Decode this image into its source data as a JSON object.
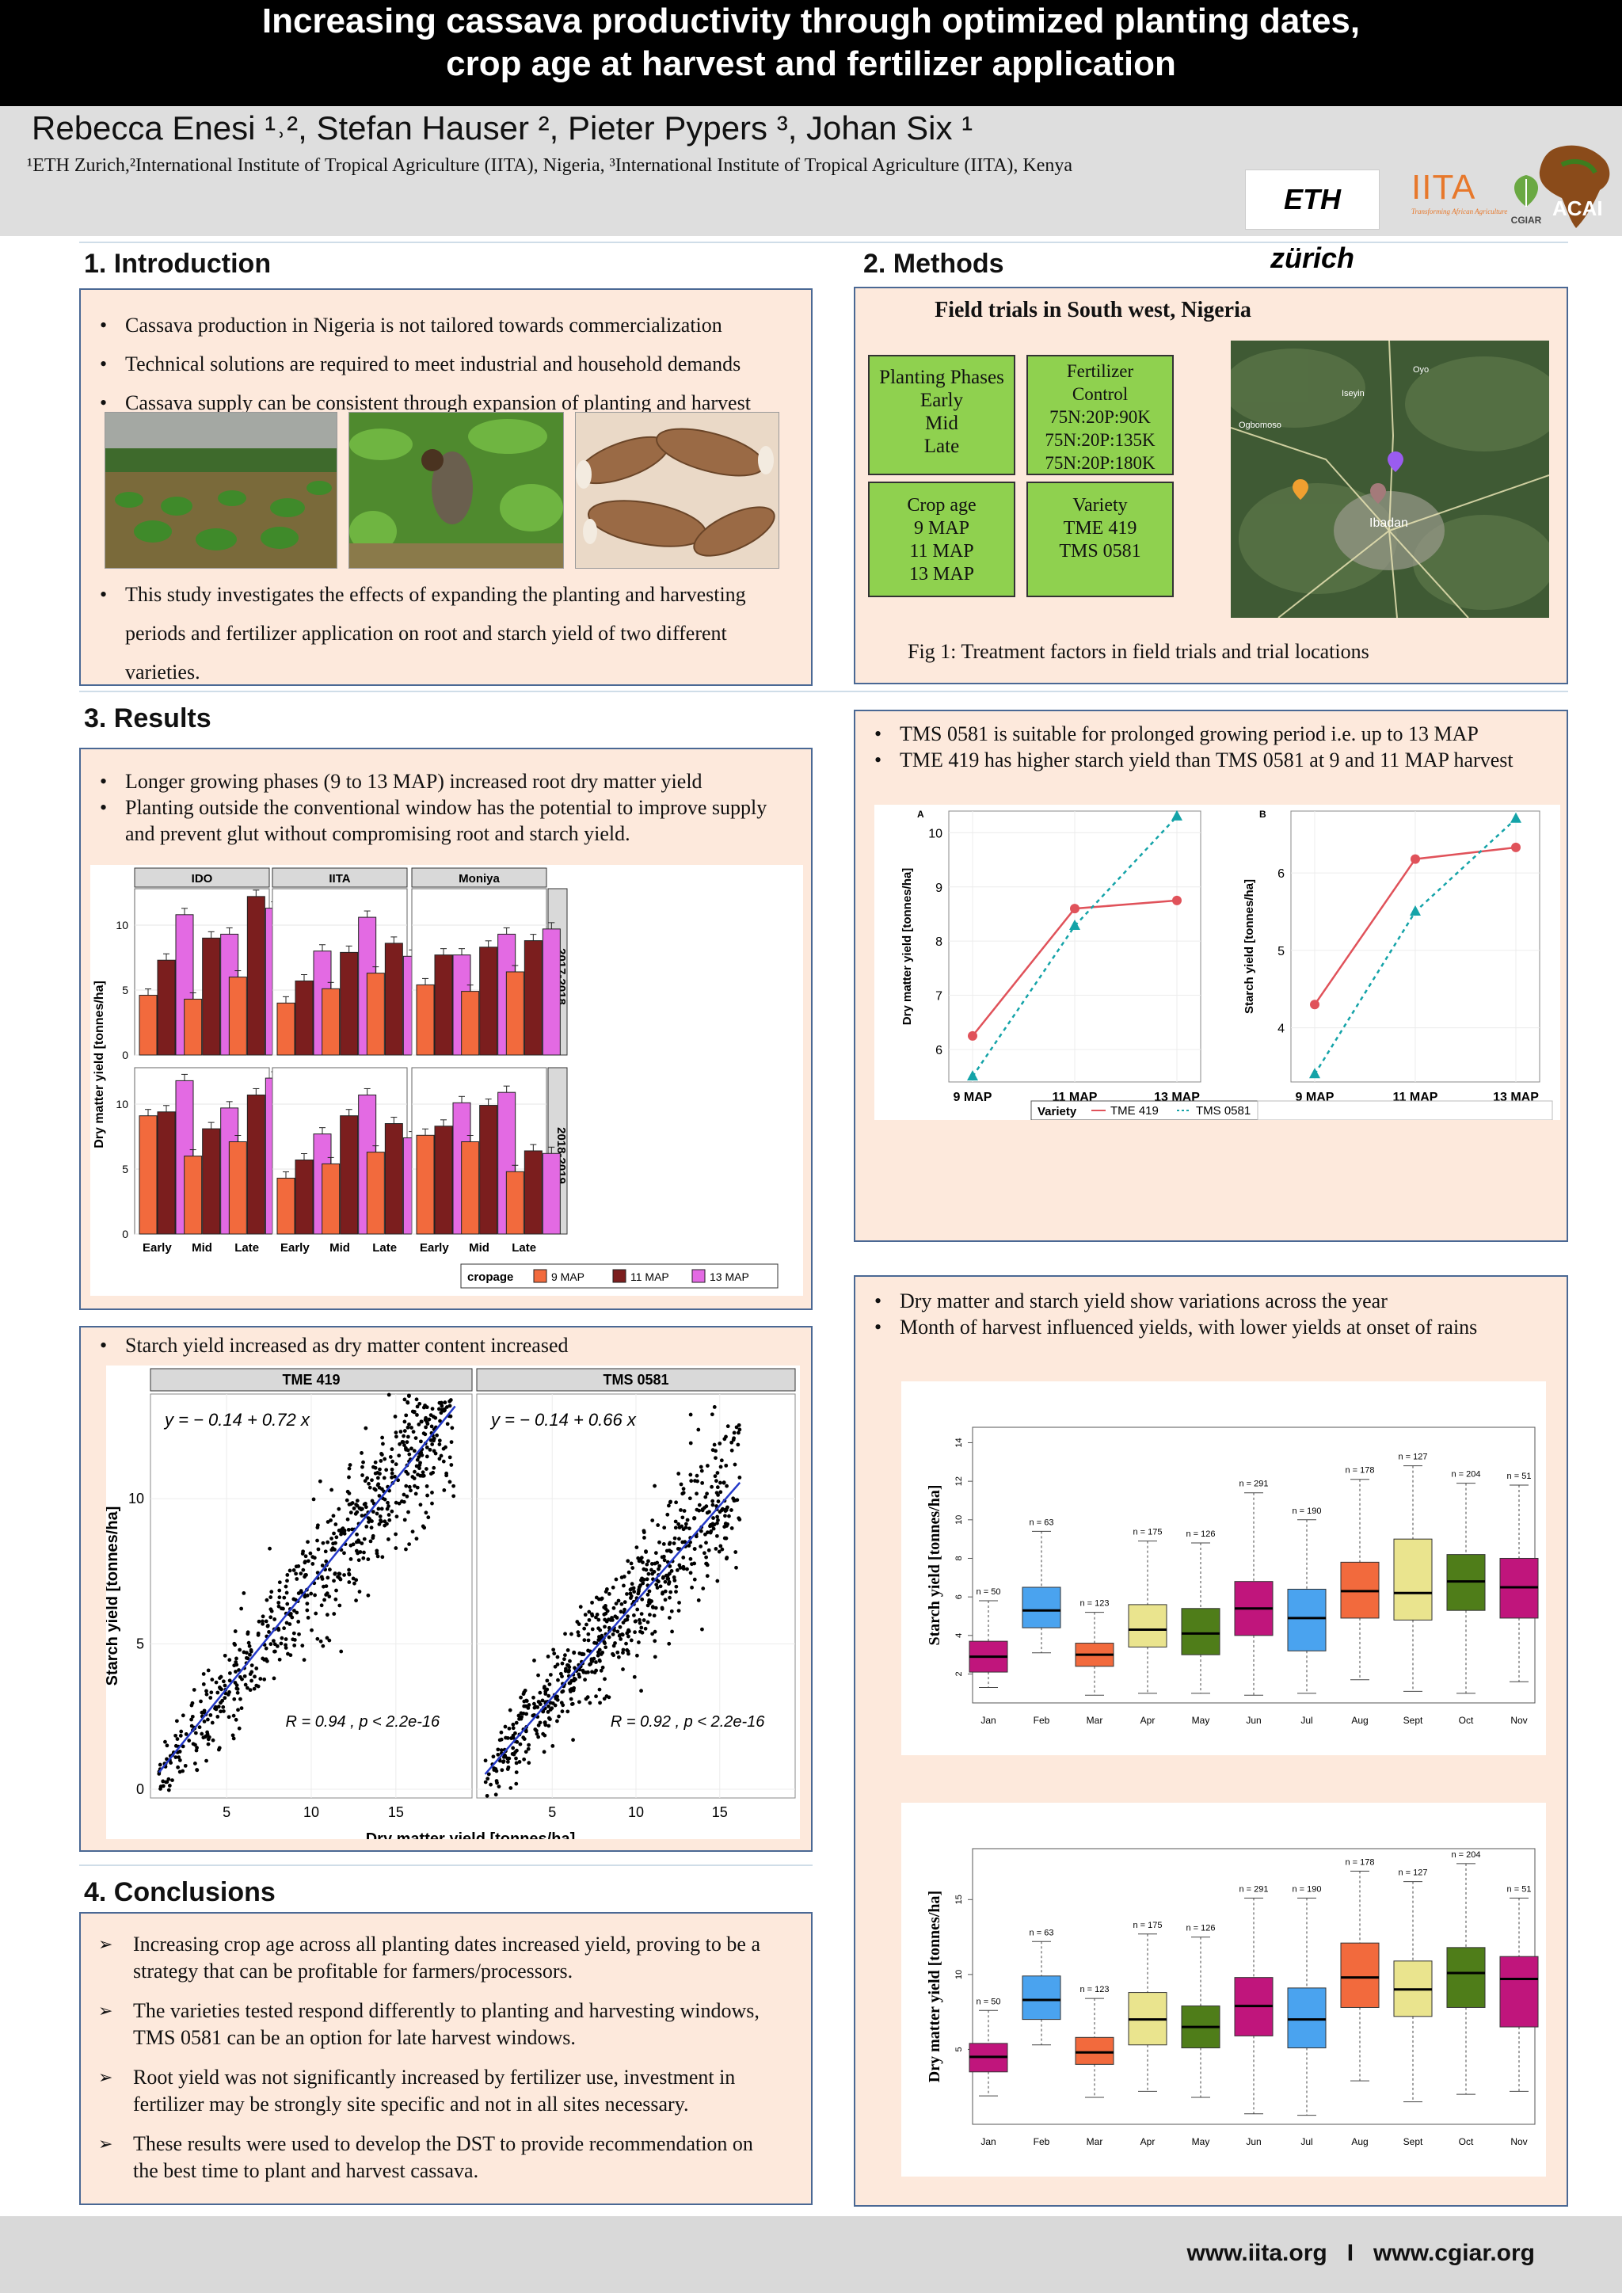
{
  "header": {
    "title_line1": "Increasing cassava productivity through optimized planting dates,",
    "title_line2": "crop age at harvest and fertilizer application",
    "authors": "Rebecca Enesi ¹˒², Stefan Hauser ², Pieter Pypers ³, Johan Six ¹",
    "affiliations": "¹ETH Zurich,²International Institute of Tropical Agriculture (IITA), Nigeria, ³International Institute of Tropical Agriculture (IITA), Kenya",
    "logos": {
      "eth": "ETH zürich",
      "iita": "IITA",
      "iita_tagline": "Transforming African Agriculture",
      "cgiar": "CGIAR",
      "acai": "ACAI"
    }
  },
  "introduction": {
    "heading": "1.  Introduction",
    "bullets": [
      "Cassava production in Nigeria is not tailored towards commercialization",
      "Technical solutions are required to meet industrial and household demands",
      "Cassava supply can be consistent through expansion of planting and harvest"
    ],
    "study_line1": "This study investigates the effects of expanding the planting and harvesting",
    "study_line2": "periods and fertilizer application on root and starch yield of two different",
    "study_line3": "varieties."
  },
  "methods": {
    "heading": "2. Methods",
    "box_title": "Field trials in South west, Nigeria",
    "planting_phases": [
      "Planting Phases",
      "Early",
      "Mid",
      "Late"
    ],
    "fertilizer": [
      "Fertilizer",
      "Control",
      "75N:20P:90K",
      "75N:20P:135K",
      "75N:20P:180K"
    ],
    "crop_age": [
      "Crop  age",
      "9 MAP",
      "11 MAP",
      "13 MAP"
    ],
    "variety": [
      "Variety",
      "TME 419",
      "TMS 0581"
    ],
    "map_labels": [
      "Ibadan",
      "Oyo",
      "Iseyin",
      "Ogbomoso"
    ],
    "caption": "Fig 1: Treatment factors in field trials and trial locations"
  },
  "results": {
    "heading": "3. Results",
    "bar_bullets": [
      "Longer growing phases (9 to 13 MAP) increased root dry matter yield",
      "Planting outside the conventional window has the potential to improve supply",
      "and prevent glut without compromising root and starch yield."
    ],
    "scatter_bullet": "Starch yield increased as dry matter content increased",
    "line_bullets": [
      "TMS 0581 is suitable for prolonged growing period i.e. up to 13 MAP",
      "TME 419 has higher starch yield than TMS 0581 at 9 and 11 MAP harvest"
    ],
    "box_bullets": [
      "Dry matter and starch yield show variations across the year",
      "Month of harvest influenced yields, with lower yields at onset of rains"
    ]
  },
  "conclusions": {
    "heading": "4. Conclusions",
    "items": [
      [
        "Increasing crop age across all planting dates increased yield, proving to be a",
        "strategy that can be profitable for farmers/processors."
      ],
      [
        "The varieties tested respond differently to planting and harvesting windows,",
        "TMS 0581 can be an option for late harvest windows."
      ],
      [
        "Root yield was not significantly increased by fertilizer use, investment in",
        "fertilizer may be strongly site specific and not in all sites necessary."
      ],
      [
        "These results were used to develop the DST to provide recommendation on",
        "the best time to plant and harvest cassava."
      ]
    ]
  },
  "footer": {
    "text": "www.iita.org   I   www.cgiar.org"
  },
  "colors": {
    "bar9": "#f26a3d",
    "bar11": "#7b1e1e",
    "bar13": "#e36ae3",
    "tme": "#e0525a",
    "tms": "#14a3a8",
    "panel": "#fde9dc",
    "border": "#4a6894"
  },
  "chart_data": [
    {
      "type": "bar",
      "id": "dry-matter-bars",
      "ylabel": "Dry matter yield [tonnes/ha]",
      "facets_x": [
        "IDO",
        "IITA",
        "Moniya"
      ],
      "facets_y": [
        "2017-2018",
        "2018-2019"
      ],
      "categories": [
        "Early",
        "Mid",
        "Late"
      ],
      "legend_title": "cropage",
      "series_names": [
        "9 MAP",
        "11 MAP",
        "13 MAP"
      ],
      "yticks": [
        0,
        5,
        10
      ],
      "ylim": [
        0,
        12.8
      ],
      "panels": {
        "2017-2018": {
          "IDO": [
            [
              4.6,
              7.3,
              10.8
            ],
            [
              4.3,
              9.0,
              9.3
            ],
            [
              6.0,
              12.2,
              11.3
            ]
          ],
          "IITA": [
            [
              4.0,
              5.7,
              8.0
            ],
            [
              5.1,
              7.9,
              10.6
            ],
            [
              6.3,
              8.6,
              7.6
            ]
          ],
          "Moniya": [
            [
              5.4,
              7.7,
              7.7
            ],
            [
              4.9,
              8.3,
              9.3
            ],
            [
              6.4,
              8.8,
              9.7
            ]
          ]
        },
        "2018-2019": {
          "IDO": [
            [
              9.1,
              9.4,
              11.8
            ],
            [
              6.0,
              8.1,
              9.7
            ],
            [
              7.1,
              10.7,
              12.0
            ]
          ],
          "IITA": [
            [
              4.3,
              5.7,
              7.7
            ],
            [
              5.4,
              9.1,
              10.7
            ],
            [
              6.3,
              8.5,
              7.4
            ]
          ],
          "Moniya": [
            [
              7.6,
              8.3,
              10.1
            ],
            [
              7.1,
              9.9,
              10.9
            ],
            [
              4.8,
              6.4,
              6.2
            ]
          ]
        }
      }
    },
    {
      "type": "line",
      "id": "dm-by-variety",
      "panel_label": "A",
      "categories": [
        "9 MAP",
        "11 MAP",
        "13 MAP"
      ],
      "ylabel": "Dry matter yield [tonnes/ha]",
      "ylim": [
        5.4,
        10.4
      ],
      "yticks": [
        6,
        7,
        8,
        9,
        10
      ],
      "legend_title": "Variety",
      "series": [
        {
          "name": "TME 419",
          "values": [
            6.25,
            8.6,
            8.75
          ]
        },
        {
          "name": "TMS 0581",
          "values": [
            5.5,
            8.28,
            10.3
          ]
        }
      ]
    },
    {
      "type": "line",
      "id": "starch-by-variety",
      "panel_label": "B",
      "categories": [
        "9 MAP",
        "11 MAP",
        "13 MAP"
      ],
      "ylabel": "Starch yield [tonnes/ha]",
      "ylim": [
        3.3,
        6.8
      ],
      "yticks": [
        4,
        5,
        6
      ],
      "series": [
        {
          "name": "TME 419",
          "values": [
            4.3,
            6.18,
            6.33
          ]
        },
        {
          "name": "TMS 0581",
          "values": [
            3.4,
            5.5,
            6.7
          ]
        }
      ]
    },
    {
      "type": "scatter",
      "id": "starch-vs-dm",
      "xlabel": "Dry matter yield [tonnes/ha]",
      "ylabel": "Starch yield [tonnes/ha]",
      "xticks": [
        5,
        10,
        15
      ],
      "yticks": [
        0,
        5,
        10
      ],
      "xlim": [
        0.5,
        19.5
      ],
      "ylim": [
        -0.3,
        13.6
      ],
      "panels": [
        {
          "name": "TME 419",
          "equation": "y = − 0.14 + 0.72 x",
          "stats": "R = 0.94 , p < 2.2e-16",
          "intercept": -0.14,
          "slope": 0.72,
          "line_x": [
            1,
            18.5
          ]
        },
        {
          "name": "TMS 0581",
          "equation": "y = − 0.14 + 0.66 x",
          "stats": "R = 0.92 , p < 2.2e-16",
          "intercept": -0.14,
          "slope": 0.66,
          "line_x": [
            1,
            16.2
          ]
        }
      ]
    },
    {
      "type": "box",
      "id": "starch-by-month",
      "ylabel": "Starch yield [tonnes/ha]",
      "ylim": [
        0.5,
        14.8
      ],
      "yticks": [
        2,
        4,
        6,
        8,
        10,
        12,
        14
      ],
      "months": [
        "Jan",
        "Feb",
        "Mar",
        "Apr",
        "May",
        "Jun",
        "Jul",
        "Aug",
        "Sept",
        "Oct",
        "Nov"
      ],
      "n": [
        "n = 50",
        "n = 63",
        "n = 123",
        "n = 175",
        "n = 126",
        "n = 291",
        "n = 190",
        "n = 178",
        "n = 127",
        "n = 204",
        "n = 51"
      ],
      "boxes": [
        [
          1.3,
          2.1,
          2.9,
          3.7,
          5.8
        ],
        [
          3.1,
          4.4,
          5.3,
          6.5,
          9.4
        ],
        [
          0.9,
          2.4,
          3.0,
          3.6,
          5.2
        ],
        [
          1.0,
          3.4,
          4.3,
          5.6,
          8.9
        ],
        [
          1.0,
          3.0,
          4.1,
          5.4,
          8.8
        ],
        [
          0.9,
          4.0,
          5.4,
          6.8,
          11.4
        ],
        [
          1.0,
          3.2,
          4.9,
          6.4,
          10.0
        ],
        [
          1.7,
          4.9,
          6.3,
          7.8,
          12.1
        ],
        [
          1.1,
          4.8,
          6.2,
          9.0,
          12.8
        ],
        [
          1.0,
          5.3,
          6.8,
          8.2,
          11.9
        ],
        [
          1.6,
          4.9,
          6.5,
          8.0,
          11.8
        ]
      ],
      "colors": [
        "#c0157c",
        "#4aa3ef",
        "#f26a3d",
        "#eae48e",
        "#4f7d19",
        "#c0157c",
        "#4aa3ef",
        "#f26a3d",
        "#eae48e",
        "#4f7d19",
        "#c0157c"
      ]
    },
    {
      "type": "box",
      "id": "dm-by-month",
      "ylabel": "Dry matter yield [tonnes/ha]",
      "ylim": [
        0,
        18.4
      ],
      "yticks": [
        5,
        10,
        15
      ],
      "months": [
        "Jan",
        "Feb",
        "Mar",
        "Apr",
        "May",
        "Jun",
        "Jul",
        "Aug",
        "Sept",
        "Oct",
        "Nov"
      ],
      "n": [
        "n = 50",
        "n = 63",
        "n = 123",
        "n = 175",
        "n = 126",
        "n = 291",
        "n = 190",
        "n = 178",
        "n = 127",
        "n = 204",
        "n = 51"
      ],
      "boxes": [
        [
          1.9,
          3.5,
          4.5,
          5.4,
          7.6
        ],
        [
          5.3,
          7.0,
          8.3,
          9.9,
          12.2
        ],
        [
          1.8,
          4.0,
          4.8,
          5.8,
          8.4
        ],
        [
          2.2,
          5.3,
          7.0,
          8.8,
          12.7
        ],
        [
          1.8,
          5.1,
          6.5,
          7.9,
          12.5
        ],
        [
          0.7,
          5.9,
          7.9,
          9.8,
          15.1
        ],
        [
          0.6,
          5.1,
          7.0,
          9.1,
          15.1
        ],
        [
          2.9,
          7.8,
          9.8,
          12.1,
          16.9
        ],
        [
          1.5,
          7.2,
          9.0,
          10.9,
          16.2
        ],
        [
          2.0,
          7.8,
          10.1,
          11.8,
          17.4
        ],
        [
          2.2,
          6.5,
          9.7,
          11.2,
          15.1
        ]
      ],
      "colors": [
        "#c0157c",
        "#4aa3ef",
        "#f26a3d",
        "#eae48e",
        "#4f7d19",
        "#c0157c",
        "#4aa3ef",
        "#f26a3d",
        "#eae48e",
        "#4f7d19",
        "#c0157c"
      ]
    }
  ]
}
